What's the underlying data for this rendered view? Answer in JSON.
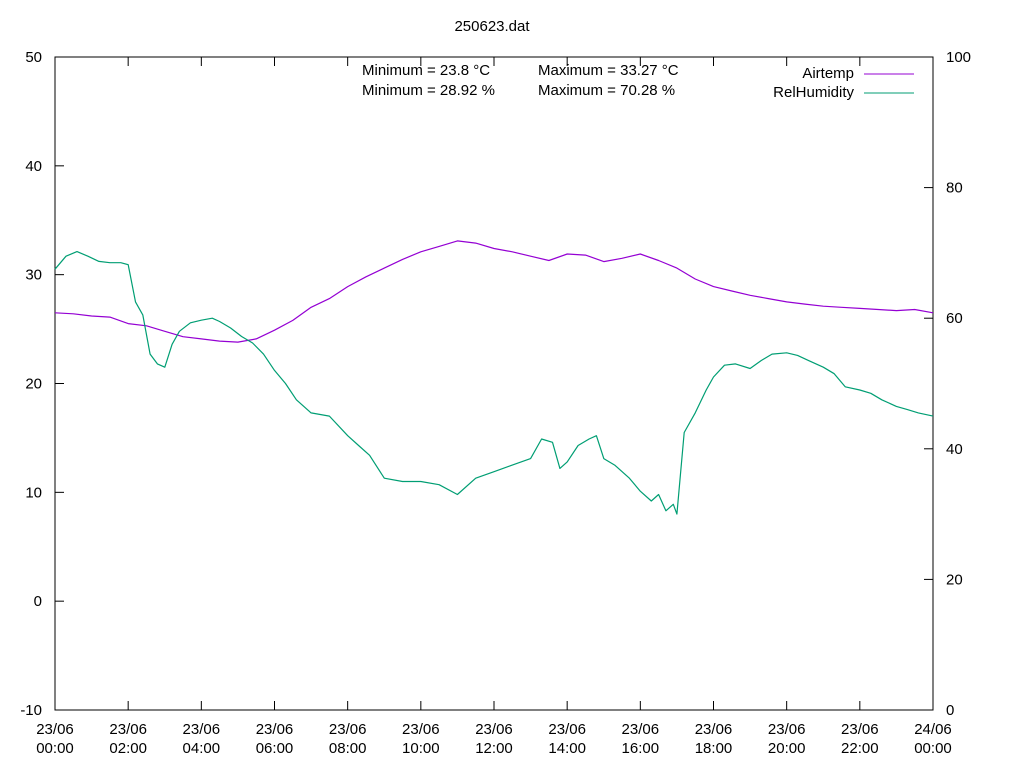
{
  "chart_data": {
    "type": "line",
    "title": "250623.dat",
    "xlabel": "",
    "ylabel": "",
    "y2label": "",
    "x_unit": "hours",
    "xlim": [
      0,
      24
    ],
    "ylim": [
      -10,
      50
    ],
    "y2lim": [
      0,
      100
    ],
    "y_ticks": [
      -10,
      0,
      10,
      20,
      30,
      40,
      50
    ],
    "y2_ticks": [
      0,
      20,
      40,
      60,
      80,
      100
    ],
    "x_ticks": [
      {
        "value": 0,
        "date": "23/06",
        "time": "00:00"
      },
      {
        "value": 2,
        "date": "23/06",
        "time": "02:00"
      },
      {
        "value": 4,
        "date": "23/06",
        "time": "04:00"
      },
      {
        "value": 6,
        "date": "23/06",
        "time": "06:00"
      },
      {
        "value": 8,
        "date": "23/06",
        "time": "08:00"
      },
      {
        "value": 10,
        "date": "23/06",
        "time": "10:00"
      },
      {
        "value": 12,
        "date": "23/06",
        "time": "12:00"
      },
      {
        "value": 14,
        "date": "23/06",
        "time": "14:00"
      },
      {
        "value": 16,
        "date": "23/06",
        "time": "16:00"
      },
      {
        "value": 18,
        "date": "23/06",
        "time": "18:00"
      },
      {
        "value": 20,
        "date": "23/06",
        "time": "20:00"
      },
      {
        "value": 22,
        "date": "23/06",
        "time": "22:00"
      },
      {
        "value": 24,
        "date": "24/06",
        "time": "00:00"
      }
    ],
    "grid": false,
    "legend_position": "top-right",
    "annotations": {
      "airtemp_min": "Minimum = 23.8 °C",
      "airtemp_max": "Maximum = 33.27 °C",
      "humidity_min": "Minimum = 28.92 %",
      "humidity_max": "Maximum = 70.28 %"
    },
    "series": [
      {
        "name": "Airtemp",
        "axis": "y",
        "color": "#9400d3",
        "x": [
          0,
          0.5,
          1,
          1.5,
          2,
          2.5,
          3,
          3.5,
          4,
          4.5,
          5,
          5.5,
          6,
          6.5,
          7,
          7.5,
          8,
          8.5,
          9,
          9.5,
          10,
          10.5,
          11,
          11.5,
          12,
          12.5,
          13,
          13.5,
          14,
          14.5,
          15,
          15.5,
          16,
          16.5,
          17,
          17.5,
          18,
          18.5,
          19,
          19.5,
          20,
          20.5,
          21,
          21.5,
          22,
          22.5,
          23,
          23.5,
          24
        ],
        "values": [
          26.5,
          26.4,
          26.2,
          26.1,
          25.5,
          25.3,
          24.8,
          24.3,
          24.1,
          23.9,
          23.8,
          24.1,
          24.9,
          25.8,
          27.0,
          27.8,
          28.9,
          29.8,
          30.6,
          31.4,
          32.1,
          32.6,
          33.1,
          32.9,
          32.4,
          32.1,
          31.7,
          31.3,
          31.9,
          31.8,
          31.2,
          31.5,
          31.9,
          31.3,
          30.6,
          29.6,
          28.9,
          28.5,
          28.1,
          27.8,
          27.5,
          27.3,
          27.1,
          27.0,
          26.9,
          26.8,
          26.7,
          26.8,
          26.5
        ]
      },
      {
        "name": "RelHumidity",
        "axis": "y2",
        "color": "#009e73",
        "x": [
          0,
          0.3,
          0.6,
          0.9,
          1.2,
          1.5,
          1.8,
          2.0,
          2.2,
          2.4,
          2.6,
          2.8,
          3.0,
          3.2,
          3.4,
          3.7,
          4.0,
          4.3,
          4.5,
          4.8,
          5.1,
          5.4,
          5.7,
          6.0,
          6.3,
          6.6,
          7.0,
          7.5,
          8.0,
          8.3,
          8.6,
          9.0,
          9.5,
          10.0,
          10.5,
          11.0,
          11.5,
          12.0,
          12.5,
          13.0,
          13.3,
          13.6,
          13.8,
          14.0,
          14.3,
          14.6,
          14.8,
          15.0,
          15.3,
          15.7,
          16.0,
          16.3,
          16.5,
          16.7,
          16.9,
          17.0,
          17.2,
          17.5,
          17.8,
          18.0,
          18.3,
          18.6,
          19.0,
          19.3,
          19.6,
          20.0,
          20.3,
          20.6,
          21.0,
          21.3,
          21.6,
          22.0,
          22.3,
          22.6,
          23.0,
          23.3,
          23.6,
          24.0
        ],
        "values": [
          67.5,
          69.5,
          70.2,
          69.5,
          68.7,
          68.5,
          68.5,
          68.2,
          62.5,
          60.5,
          54.5,
          53.0,
          52.5,
          56.0,
          58.0,
          59.3,
          59.7,
          60.0,
          59.5,
          58.5,
          57.2,
          56.2,
          54.5,
          52.0,
          50.0,
          47.5,
          45.5,
          45.0,
          42.0,
          40.5,
          39.0,
          35.5,
          35.0,
          35.0,
          34.5,
          33.0,
          35.5,
          36.5,
          37.5,
          38.5,
          41.5,
          41.0,
          37.0,
          38.0,
          40.5,
          41.5,
          42.0,
          38.5,
          37.5,
          35.5,
          33.5,
          32.0,
          33.0,
          30.5,
          31.5,
          30.0,
          42.5,
          45.5,
          49.0,
          51.0,
          52.8,
          53.0,
          52.3,
          53.5,
          54.5,
          54.7,
          54.3,
          53.5,
          52.5,
          51.5,
          49.5,
          49.0,
          48.5,
          47.5,
          46.5,
          46.0,
          45.5,
          45.0
        ]
      }
    ]
  }
}
